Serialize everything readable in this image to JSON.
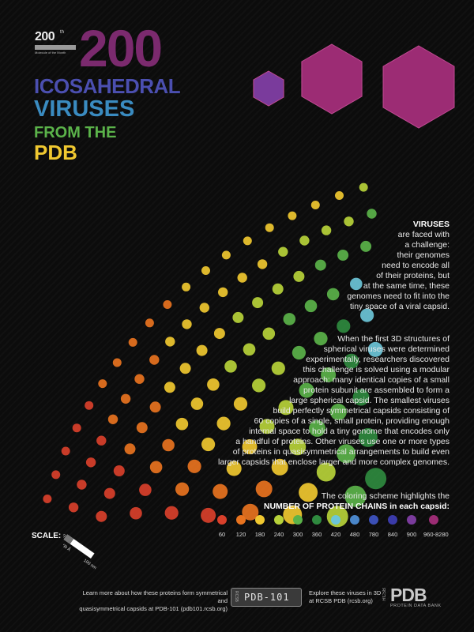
{
  "badge": {
    "number": "200",
    "superscript": "th",
    "subtitle": "Molecule of the Month"
  },
  "title": {
    "number": "200",
    "line1": "ICOSAHEDRAL",
    "line2": "VIRUSES",
    "line3": "FROM THE",
    "line4": "PDB"
  },
  "intro": {
    "heading": "VIRUSES",
    "lines": [
      "are faced with",
      "a challenge:",
      "their genomes",
      "need to encode all",
      "of their proteins, but",
      "at the same time, these",
      "genomes need to fit into the",
      "tiny space of a viral capsid."
    ]
  },
  "body": {
    "lines": [
      "When the first 3D structures of",
      "spherical viruses were determined",
      "experimentally, researchers discovered",
      "this challenge is solved using a modular",
      "approach: many identical copies of a small",
      "protein subunit are assembled to form a",
      "large spherical capsid. The smallest viruses",
      "build perfectly symmetrical capsids consisting of",
      "60 copies of a single, small protein, providing enough",
      "internal space to hold a tiny genome that encodes only",
      "a handful of proteins. Other viruses use one or more types",
      "of proteins in quasisymmetrical arrangements to build even",
      "larger capsids that enclose larger and more complex genomes."
    ]
  },
  "coloring": {
    "line1": "The coloring scheme highlights the",
    "line2": "NUMBER OF PROTEIN CHAINS in each capsid:"
  },
  "legend": [
    {
      "label": "60",
      "color": "#d9402b"
    },
    {
      "label": "120",
      "color": "#e8731f"
    },
    {
      "label": "180",
      "color": "#f0c830"
    },
    {
      "label": "240",
      "color": "#b7d23a"
    },
    {
      "label": "300",
      "color": "#5bb34a"
    },
    {
      "label": "360",
      "color": "#2f8a3f"
    },
    {
      "label": "420",
      "color": "#6cc6d8"
    },
    {
      "label": "480",
      "color": "#4a86c9"
    },
    {
      "label": "780",
      "color": "#3b4fb5"
    },
    {
      "label": "840",
      "color": "#3a3aa8"
    },
    {
      "label": "900",
      "color": "#7a3b9c"
    },
    {
      "label": "960-8280",
      "color": "#9c2c74"
    }
  ],
  "scale": {
    "label": "SCALE:",
    "tick0": "0",
    "tick1": "100 Å",
    "tick2": "100 nm"
  },
  "footer": {
    "left_line1": "Learn more about how these proteins form symmetrical and",
    "left_line2": "quasisymmetrical capsids at PDB-101 (pdb101.rcsb.org)",
    "button_side": "RCSB",
    "button_text": "PDB-101",
    "mid_line1": "Explore these viruses in 3D",
    "mid_line2": "at RCSB PDB (rcsb.org)",
    "logo_side": "RCSB",
    "logo_text": "PDB",
    "logo_sub": "PROTEIN DATA BANK"
  }
}
